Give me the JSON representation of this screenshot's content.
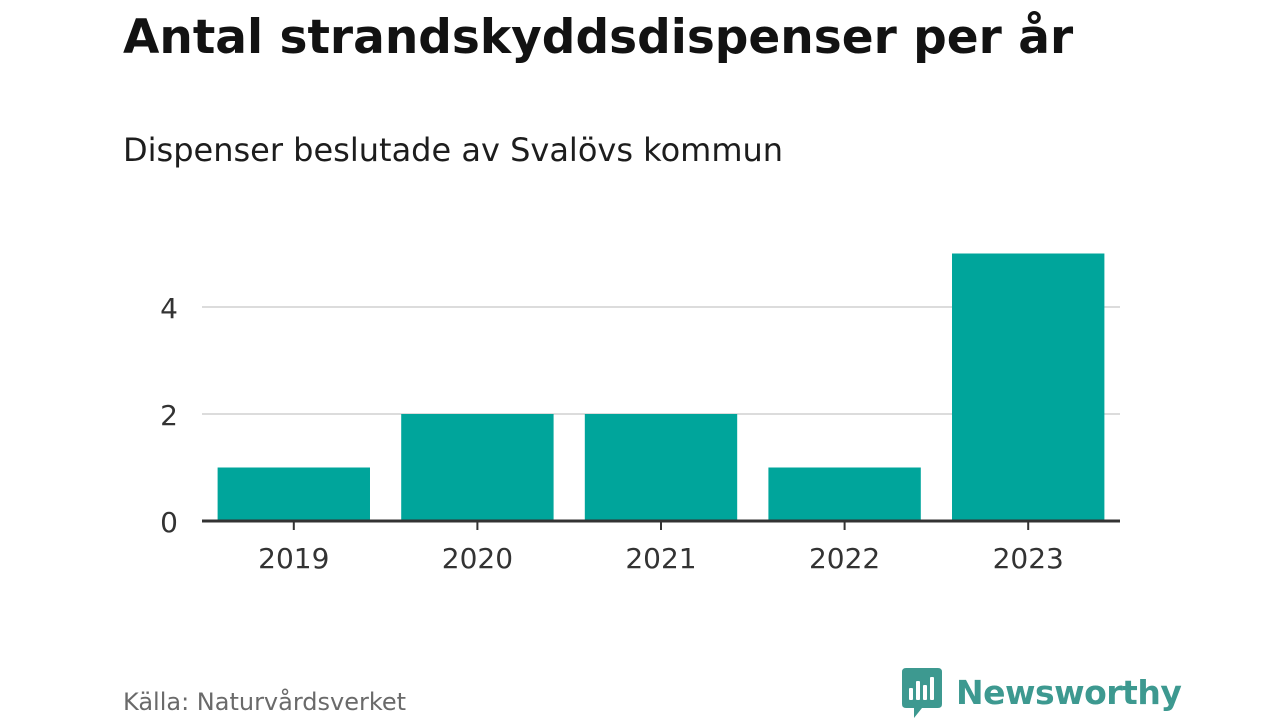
{
  "title": "Antal strandskyddsdispenser per år",
  "subtitle": "Dispenser beslutade av Svalövs kommun",
  "source": "Källa: Naturvårdsverket",
  "brand": {
    "name": "Newsworthy",
    "icon": "newsworthy-logo-icon"
  },
  "colors": {
    "bar": "#00a59b",
    "grid": "#dcdcdc",
    "axis": "#333333",
    "tick_text": "#333333",
    "brand": "#3d9990"
  },
  "chart_data": {
    "type": "bar",
    "title": "Antal strandskyddsdispenser per år",
    "subtitle": "Dispenser beslutade av Svalövs kommun",
    "xlabel": "",
    "ylabel": "",
    "categories": [
      "2019",
      "2020",
      "2021",
      "2022",
      "2023"
    ],
    "values": [
      1,
      2,
      2,
      1,
      5
    ],
    "ylim": [
      0,
      5
    ],
    "yticks": [
      0,
      2,
      4
    ],
    "grid": true,
    "legend": "none"
  }
}
